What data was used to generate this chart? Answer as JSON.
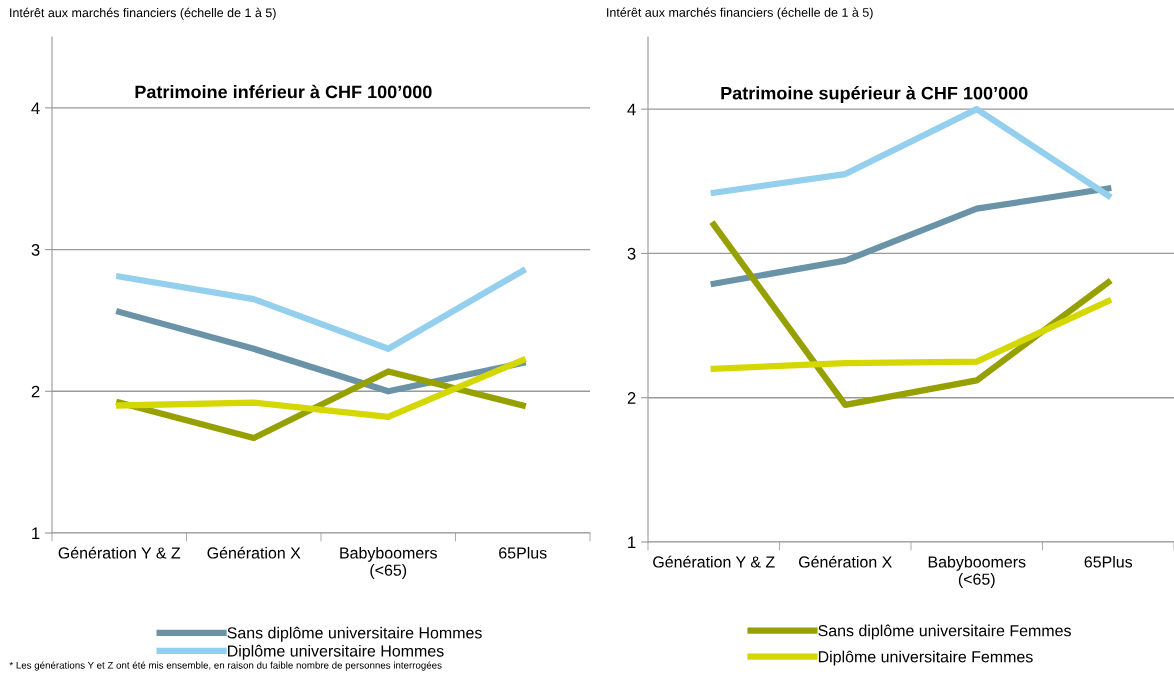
{
  "chart_data": [
    {
      "type": "line",
      "title": "Patrimoine inférieur à CHF 100’000",
      "ylabel": "Intérêt aux marchés financiers (échelle de 1 à 5)",
      "categories": [
        "Génération Y & Z",
        "Génération X",
        "Babyboomers\n(<65)",
        "65Plus"
      ],
      "series": [
        {
          "name": "Sans diplôme universitaire Hommes",
          "color": "#6a93a8",
          "values": [
            2.56,
            2.3,
            2.0,
            2.2
          ]
        },
        {
          "name": "Diplôme universitaire Hommes",
          "color": "#94cfee",
          "values": [
            2.81,
            2.65,
            2.3,
            2.85
          ]
        },
        {
          "color": "#96a000",
          "values": [
            1.92,
            1.67,
            2.14,
            1.9
          ]
        },
        {
          "color": "#d4d800",
          "values": [
            1.9,
            1.92,
            1.82,
            2.22
          ]
        }
      ],
      "ylim": [
        1,
        4.5
      ],
      "yticks": [
        1,
        2,
        3,
        4
      ],
      "grid": "y",
      "legend": "bottom",
      "marker": "none",
      "line_style": "solid",
      "annotations": [
        "* Les générations Y et Z ont été mis ensemble, en raison du faible nombre de personnes interrogées"
      ]
    },
    {
      "type": "line",
      "title": "Patrimoine supérieur à CHF 100’000",
      "ylabel": "Intérêt aux marchés financiers (échelle de 1 à 5)",
      "categories": [
        "Génération Y & Z",
        "Génération X",
        "Babyboomers\n(<65)",
        "65Plus"
      ],
      "series": [
        {
          "color": "#6a93a8",
          "values": [
            2.79,
            2.95,
            3.31,
            3.45
          ]
        },
        {
          "color": "#94cfee",
          "values": [
            3.42,
            3.55,
            4.0,
            3.4
          ]
        },
        {
          "name": "Sans diplôme universitaire Femmes",
          "color": "#96a000",
          "values": [
            3.2,
            1.95,
            2.12,
            2.8
          ]
        },
        {
          "name": "Diplôme universitaire Femmes",
          "color": "#d4d800",
          "values": [
            2.2,
            2.24,
            2.25,
            2.67
          ]
        }
      ],
      "ylim": [
        1,
        4.5
      ],
      "yticks": [
        1,
        2,
        3,
        4
      ],
      "grid": "y",
      "legend": "bottom",
      "marker": "none",
      "line_style": "solid"
    }
  ]
}
